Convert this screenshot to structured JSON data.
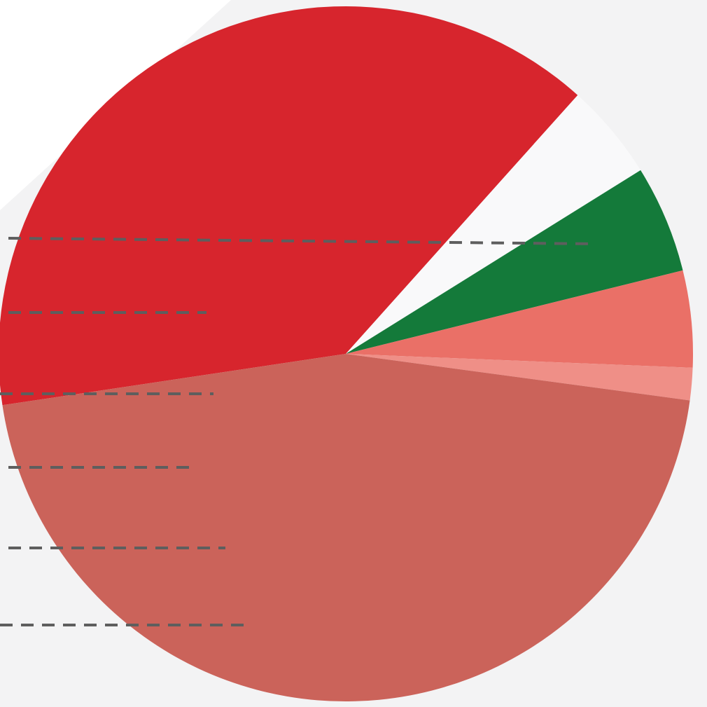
{
  "chart_data": {
    "type": "pie",
    "title": "",
    "legend": "none",
    "labels_visible": false,
    "leader_lines": "dashed",
    "background_color": "#f3f3f4",
    "slices": [
      {
        "value": 39.0,
        "color": "#d7252d"
      },
      {
        "value": 4.5,
        "color": "#f9f9fa"
      },
      {
        "value": 5.0,
        "color": "#147a3a"
      },
      {
        "value": 4.5,
        "color": "#ea7067"
      },
      {
        "value": 1.5,
        "color": "#ef8f87"
      },
      {
        "value": 45.5,
        "color": "#cb635a"
      }
    ]
  }
}
